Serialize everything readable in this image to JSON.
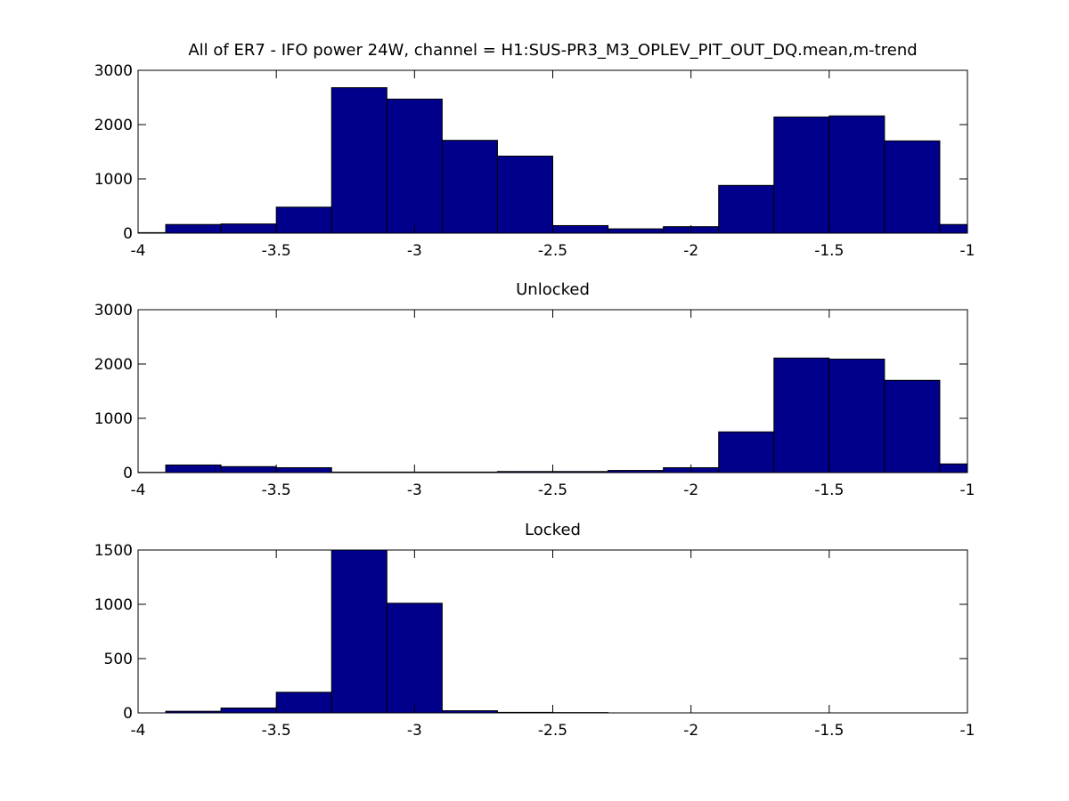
{
  "colors": {
    "bar_fill": "#00008b",
    "bar_edge": "#000000",
    "axes": "#000000",
    "background": "#ffffff"
  },
  "chart_data": [
    {
      "type": "bar",
      "title": "All of ER7 - IFO power 24W, channel = H1:SUS-PR3_M3_OPLEV_PIT_OUT_DQ.mean,m-trend",
      "xlabel": "",
      "ylabel": "",
      "xlim": [
        -4,
        -1
      ],
      "ylim": [
        0,
        3000
      ],
      "xticks": [
        -4,
        -3.5,
        -3,
        -2.5,
        -2,
        -1.5,
        -1
      ],
      "xtick_labels": [
        "-4",
        "-3.5",
        "-3",
        "-2.5",
        "-2",
        "-1.5",
        "-1"
      ],
      "yticks": [
        0,
        1000,
        2000,
        3000
      ],
      "ytick_labels": [
        "0",
        "1000",
        "2000",
        "3000"
      ],
      "grid": false,
      "bin_width": 0.2,
      "bin_centers": [
        -4.0,
        -3.8,
        -3.6,
        -3.4,
        -3.2,
        -3.0,
        -2.8,
        -2.6,
        -2.4,
        -2.2,
        -2.0,
        -1.8,
        -1.6,
        -1.4,
        -1.2,
        -1.0
      ],
      "values": [
        10,
        160,
        170,
        480,
        2680,
        2470,
        1710,
        1420,
        140,
        80,
        120,
        880,
        2140,
        2160,
        1700,
        160
      ]
    },
    {
      "type": "bar",
      "title": "Unlocked",
      "xlabel": "",
      "ylabel": "",
      "xlim": [
        -4,
        -1
      ],
      "ylim": [
        0,
        3000
      ],
      "xticks": [
        -4,
        -3.5,
        -3,
        -2.5,
        -2,
        -1.5,
        -1
      ],
      "xtick_labels": [
        "-4",
        "-3.5",
        "-3",
        "-2.5",
        "-2",
        "-1.5",
        "-1"
      ],
      "yticks": [
        0,
        1000,
        2000,
        3000
      ],
      "ytick_labels": [
        "0",
        "1000",
        "2000",
        "3000"
      ],
      "grid": false,
      "bin_width": 0.2,
      "bin_centers": [
        -4.0,
        -3.8,
        -3.6,
        -3.4,
        -3.2,
        -3.0,
        -2.8,
        -2.6,
        -2.4,
        -2.2,
        -2.0,
        -1.8,
        -1.6,
        -1.4,
        -1.2,
        -1.0
      ],
      "values": [
        5,
        140,
        110,
        90,
        10,
        10,
        10,
        20,
        20,
        40,
        90,
        750,
        2110,
        2090,
        1700,
        160
      ]
    },
    {
      "type": "bar",
      "title": "Locked",
      "xlabel": "",
      "ylabel": "",
      "xlim": [
        -4,
        -1
      ],
      "ylim": [
        0,
        1500
      ],
      "xticks": [
        -4,
        -3.5,
        -3,
        -2.5,
        -2,
        -1.5,
        -1
      ],
      "xtick_labels": [
        "-4",
        "-3.5",
        "-3",
        "-2.5",
        "-2",
        "-1.5",
        "-1"
      ],
      "yticks": [
        0,
        500,
        1000,
        1500
      ],
      "ytick_labels": [
        "0",
        "500",
        "1000",
        "1500"
      ],
      "grid": false,
      "bin_width": 0.2,
      "bin_centers": [
        -4.0,
        -3.8,
        -3.6,
        -3.4,
        -3.2,
        -3.0,
        -2.8,
        -2.6,
        -2.4,
        -2.2,
        -2.0,
        -1.8,
        -1.6,
        -1.4,
        -1.2,
        -1.0
      ],
      "values": [
        0,
        15,
        45,
        190,
        1500,
        1010,
        20,
        5,
        3,
        0,
        0,
        0,
        0,
        0,
        0,
        0
      ]
    }
  ]
}
